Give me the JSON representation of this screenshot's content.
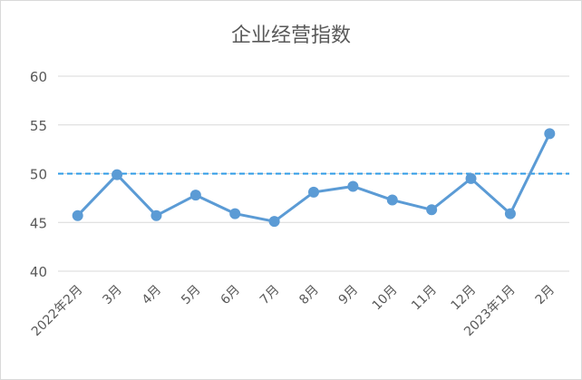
{
  "chart_data": {
    "type": "line",
    "title": "企业经营指数",
    "categories": [
      "2022年2月",
      "3月",
      "4月",
      "5月",
      "6月",
      "7月",
      "8月",
      "9月",
      "10月",
      "11月",
      "12月",
      "2023年1月",
      "2月"
    ],
    "series": [
      {
        "values": [
          45.7,
          49.9,
          45.7,
          47.8,
          45.9,
          45.1,
          48.1,
          48.7,
          47.3,
          46.3,
          49.5,
          45.9,
          54.1
        ]
      }
    ],
    "reference_line": {
      "value": 50,
      "style": "dashed"
    },
    "ylim": [
      40,
      60
    ],
    "yticks": [
      40,
      45,
      50,
      55,
      60
    ],
    "xlabel": "",
    "ylabel": "",
    "grid": true,
    "legend": "none",
    "colors": {
      "series": "#5b9bd5",
      "reference": "#2e9be6"
    }
  }
}
